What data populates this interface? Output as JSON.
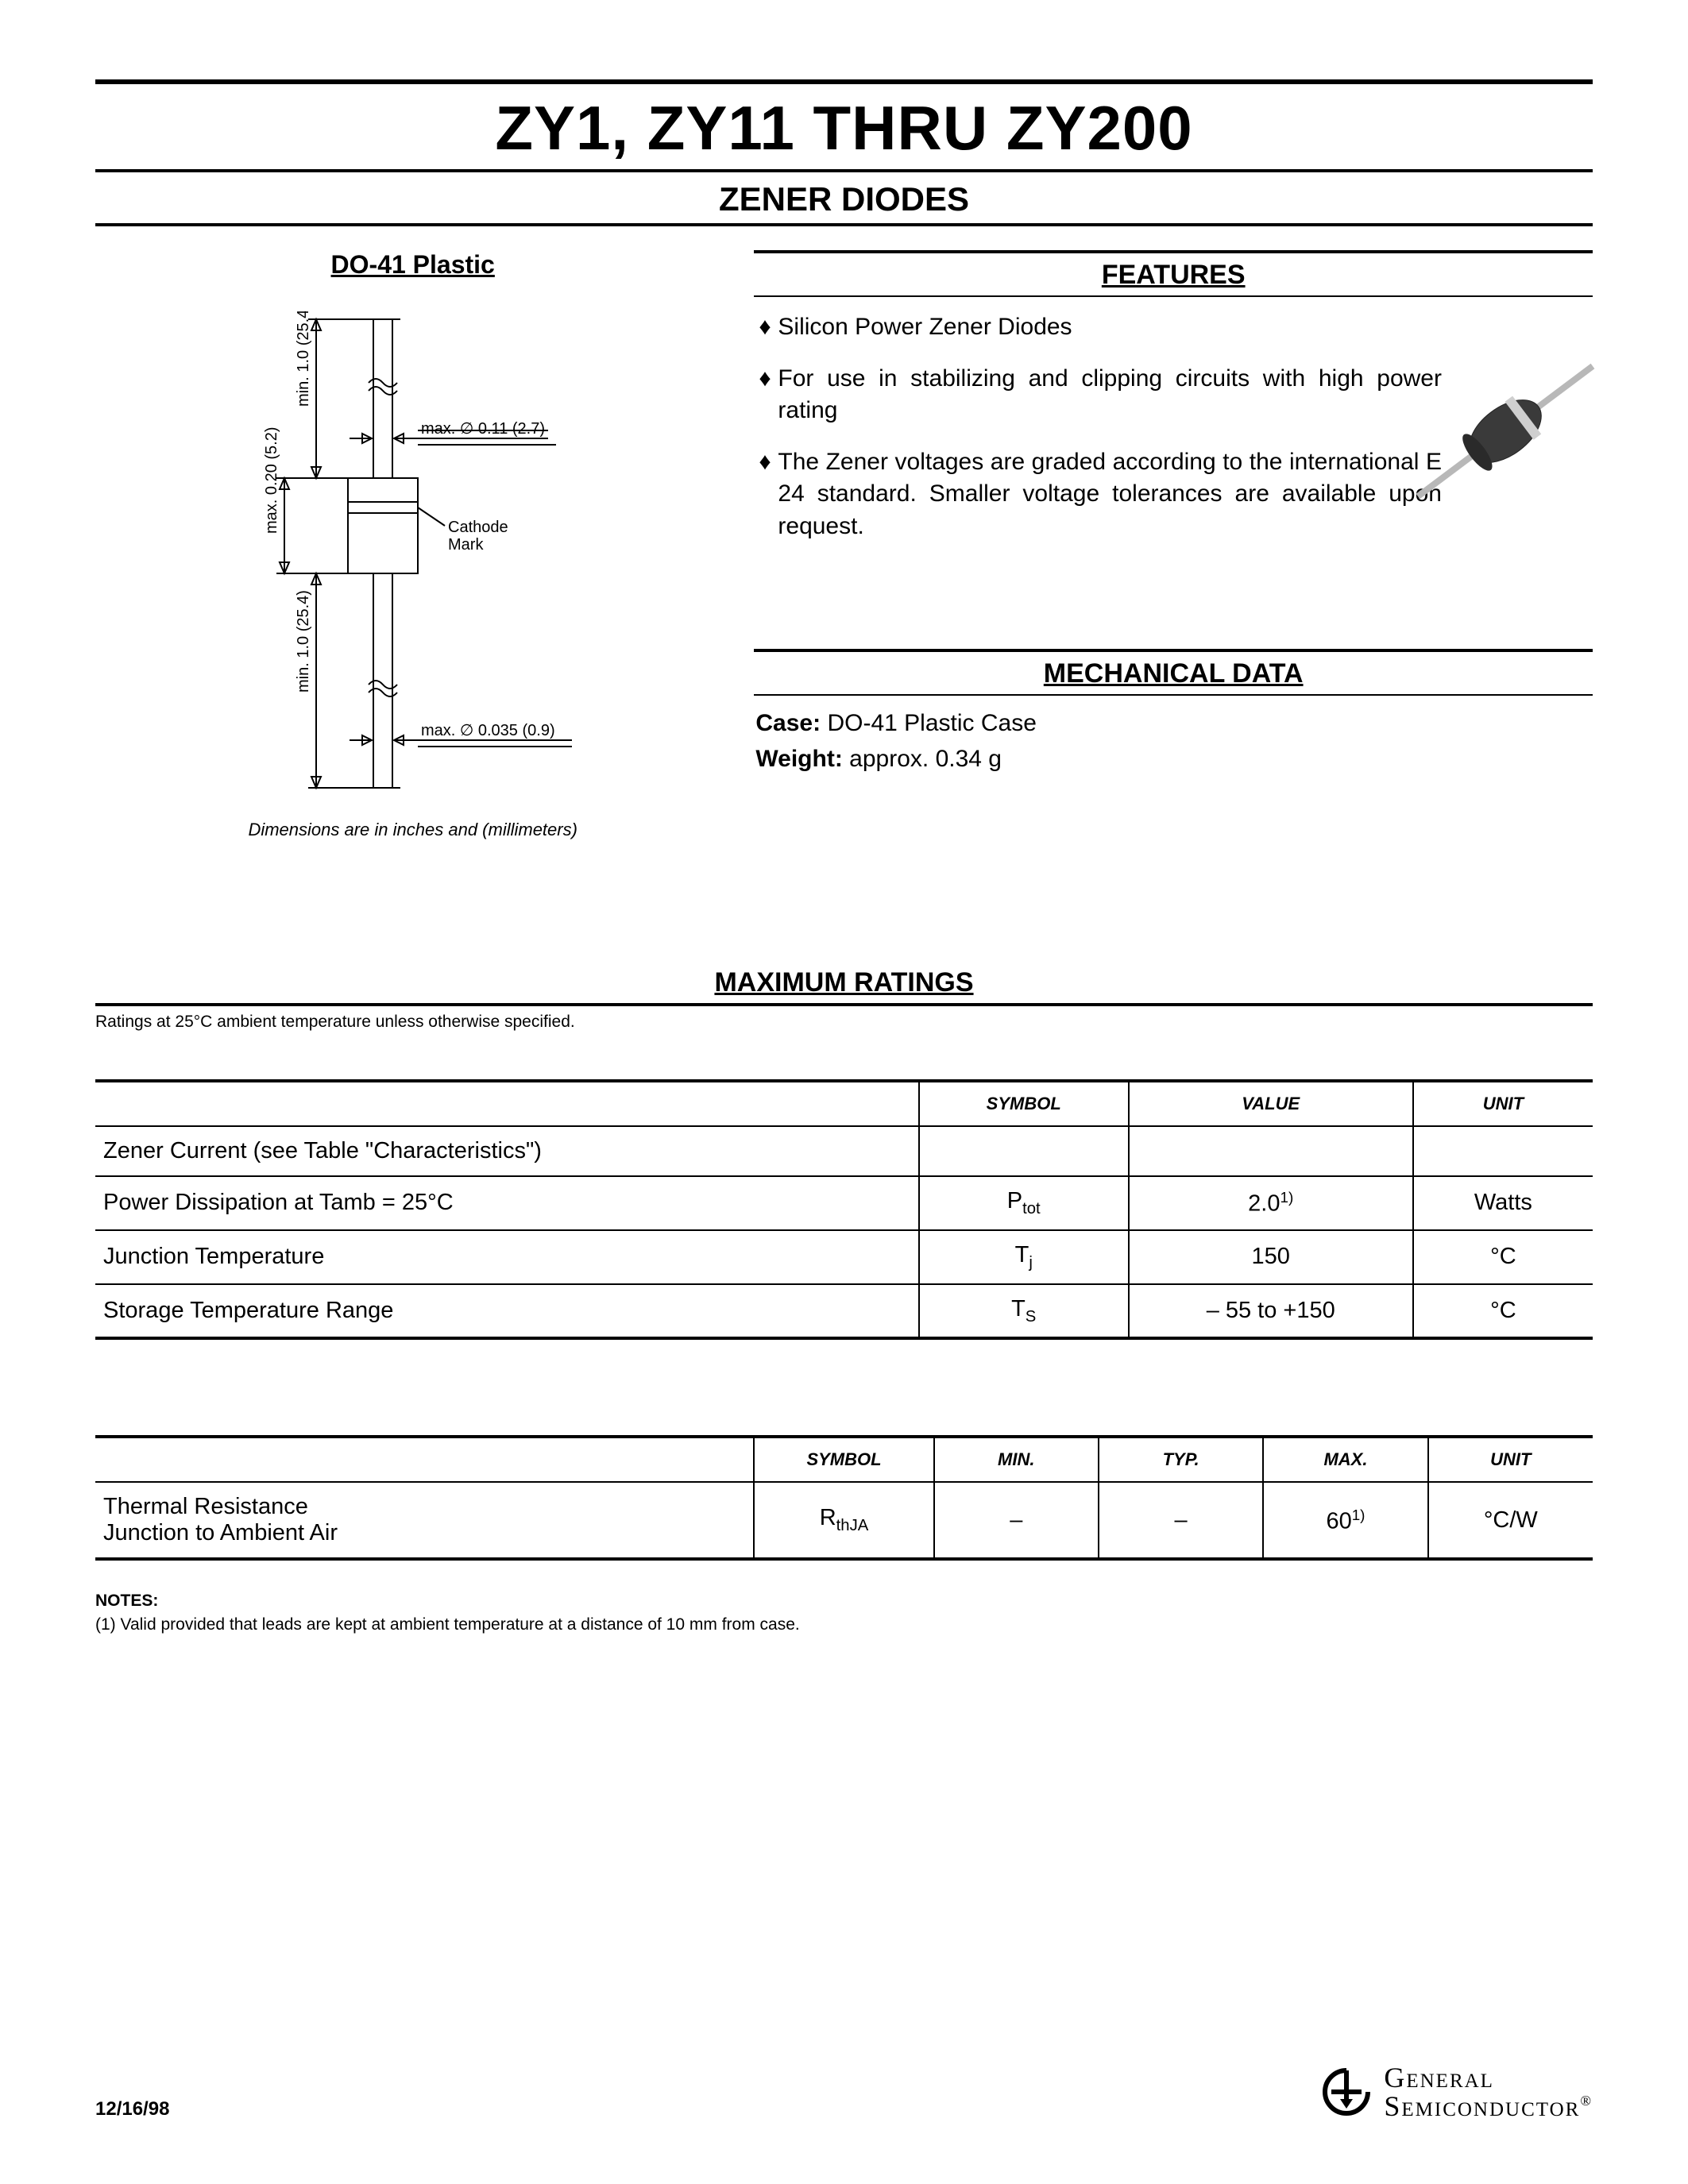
{
  "header": {
    "title": "ZY1, ZY11 THRU ZY200",
    "subtitle": "ZENER DIODES"
  },
  "package": {
    "label": "DO-41 Plastic",
    "dims_note": "Dimensions are in inches and (millimeters)",
    "diagram": {
      "lead_top_label": "min. 1.0 (25.4)",
      "body_label": "max. 0.20 (5.2)",
      "lead_bot_label": "min. 1.0 (25.4)",
      "dia_top": "max. ∅ 0.11 (2.7)",
      "dia_bot": "max. ∅ 0.035 (0.9)",
      "cathode_label_1": "Cathode",
      "cathode_label_2": "Mark"
    }
  },
  "features": {
    "heading": "FEATURES",
    "items": [
      "Silicon Power Zener Diodes",
      "For use in stabilizing and clipping circuits with high power rating",
      "The Zener voltages are graded according to the international E 24 standard. Smaller voltage tolerances are available upon request."
    ]
  },
  "mechanical": {
    "heading": "MECHANICAL DATA",
    "case_label": "Case:",
    "case_value": "DO-41 Plastic Case",
    "weight_label": "Weight:",
    "weight_value": "approx. 0.34 g"
  },
  "max_ratings": {
    "heading": "MAXIMUM RATINGS",
    "note": "Ratings at 25°C ambient temperature unless otherwise specified.",
    "columns": [
      "SYMBOL",
      "VALUE",
      "UNIT"
    ],
    "col_widths_pct": [
      55,
      14,
      19,
      12
    ],
    "rows": [
      {
        "param": "Zener Current (see Table \"Characteristics\")",
        "symbol": "",
        "value": "",
        "unit": ""
      },
      {
        "param": "Power Dissipation at Tamb = 25°C",
        "symbol_html": "P<sub>tot</sub>",
        "value_html": "2.0<sup>1)</sup>",
        "unit": "Watts"
      },
      {
        "param": "Junction Temperature",
        "symbol_html": "T<sub>j</sub>",
        "value": "150",
        "unit": "°C"
      },
      {
        "param": "Storage Temperature Range",
        "symbol_html": "T<sub>S</sub>",
        "value": "– 55 to +150",
        "unit": "°C"
      }
    ]
  },
  "thermal": {
    "columns": [
      "SYMBOL",
      "MIN.",
      "TYP.",
      "MAX.",
      "UNIT"
    ],
    "col_widths_pct": [
      44,
      12,
      11,
      11,
      11,
      11
    ],
    "row": {
      "param_html": "Thermal Resistance<br>Junction to Ambient Air",
      "symbol_html": "R<sub>thJA</sub>",
      "min": "–",
      "typ": "–",
      "max_html": "60<sup>1)</sup>",
      "unit": "°C/W"
    }
  },
  "notes": {
    "heading": "NOTES:",
    "items": [
      "(1) Valid provided that leads are kept at ambient temperature at a distance of 10 mm from case."
    ]
  },
  "footer": {
    "date": "12/16/98",
    "company_line1": "General",
    "company_line2": "Semiconductor"
  },
  "colors": {
    "text": "#000000",
    "rule": "#000000",
    "component_body": "#3a3a3a",
    "component_lead": "#b8b8b8"
  }
}
